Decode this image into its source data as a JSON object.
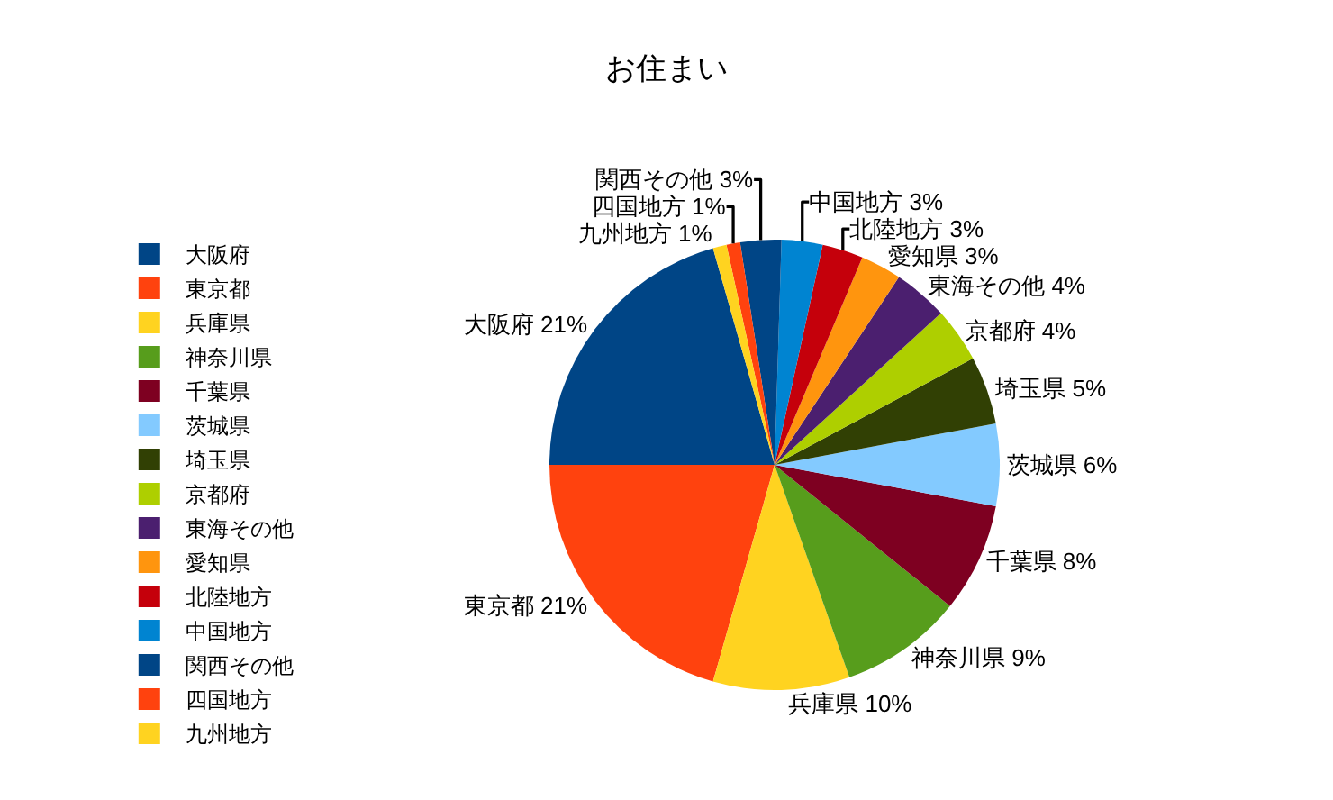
{
  "chart_data": {
    "type": "pie",
    "title": "お住まい",
    "categories": [
      "大阪府",
      "東京都",
      "兵庫県",
      "神奈川県",
      "千葉県",
      "茨城県",
      "埼玉県",
      "京都府",
      "東海その他",
      "愛知県",
      "北陸地方",
      "中国地方",
      "関西その他",
      "四国地方",
      "九州地方"
    ],
    "values": [
      21,
      21,
      10,
      9,
      8,
      6,
      5,
      4,
      4,
      3,
      3,
      3,
      3,
      1,
      1
    ],
    "value_labels": [
      "21%",
      "21%",
      "10%",
      "9%",
      "8%",
      "6%",
      "5%",
      "4%",
      "4%",
      "3%",
      "3%",
      "3%",
      "3%",
      "1%",
      "1%"
    ],
    "colors": [
      "#004586",
      "#ff420e",
      "#ffd320",
      "#579d1c",
      "#7e0021",
      "#83caff",
      "#314004",
      "#aecf00",
      "#4b1f6f",
      "#ff950e",
      "#c5000b",
      "#0084d1",
      "#004586",
      "#ff420e",
      "#ffd320"
    ],
    "legend": "left"
  }
}
